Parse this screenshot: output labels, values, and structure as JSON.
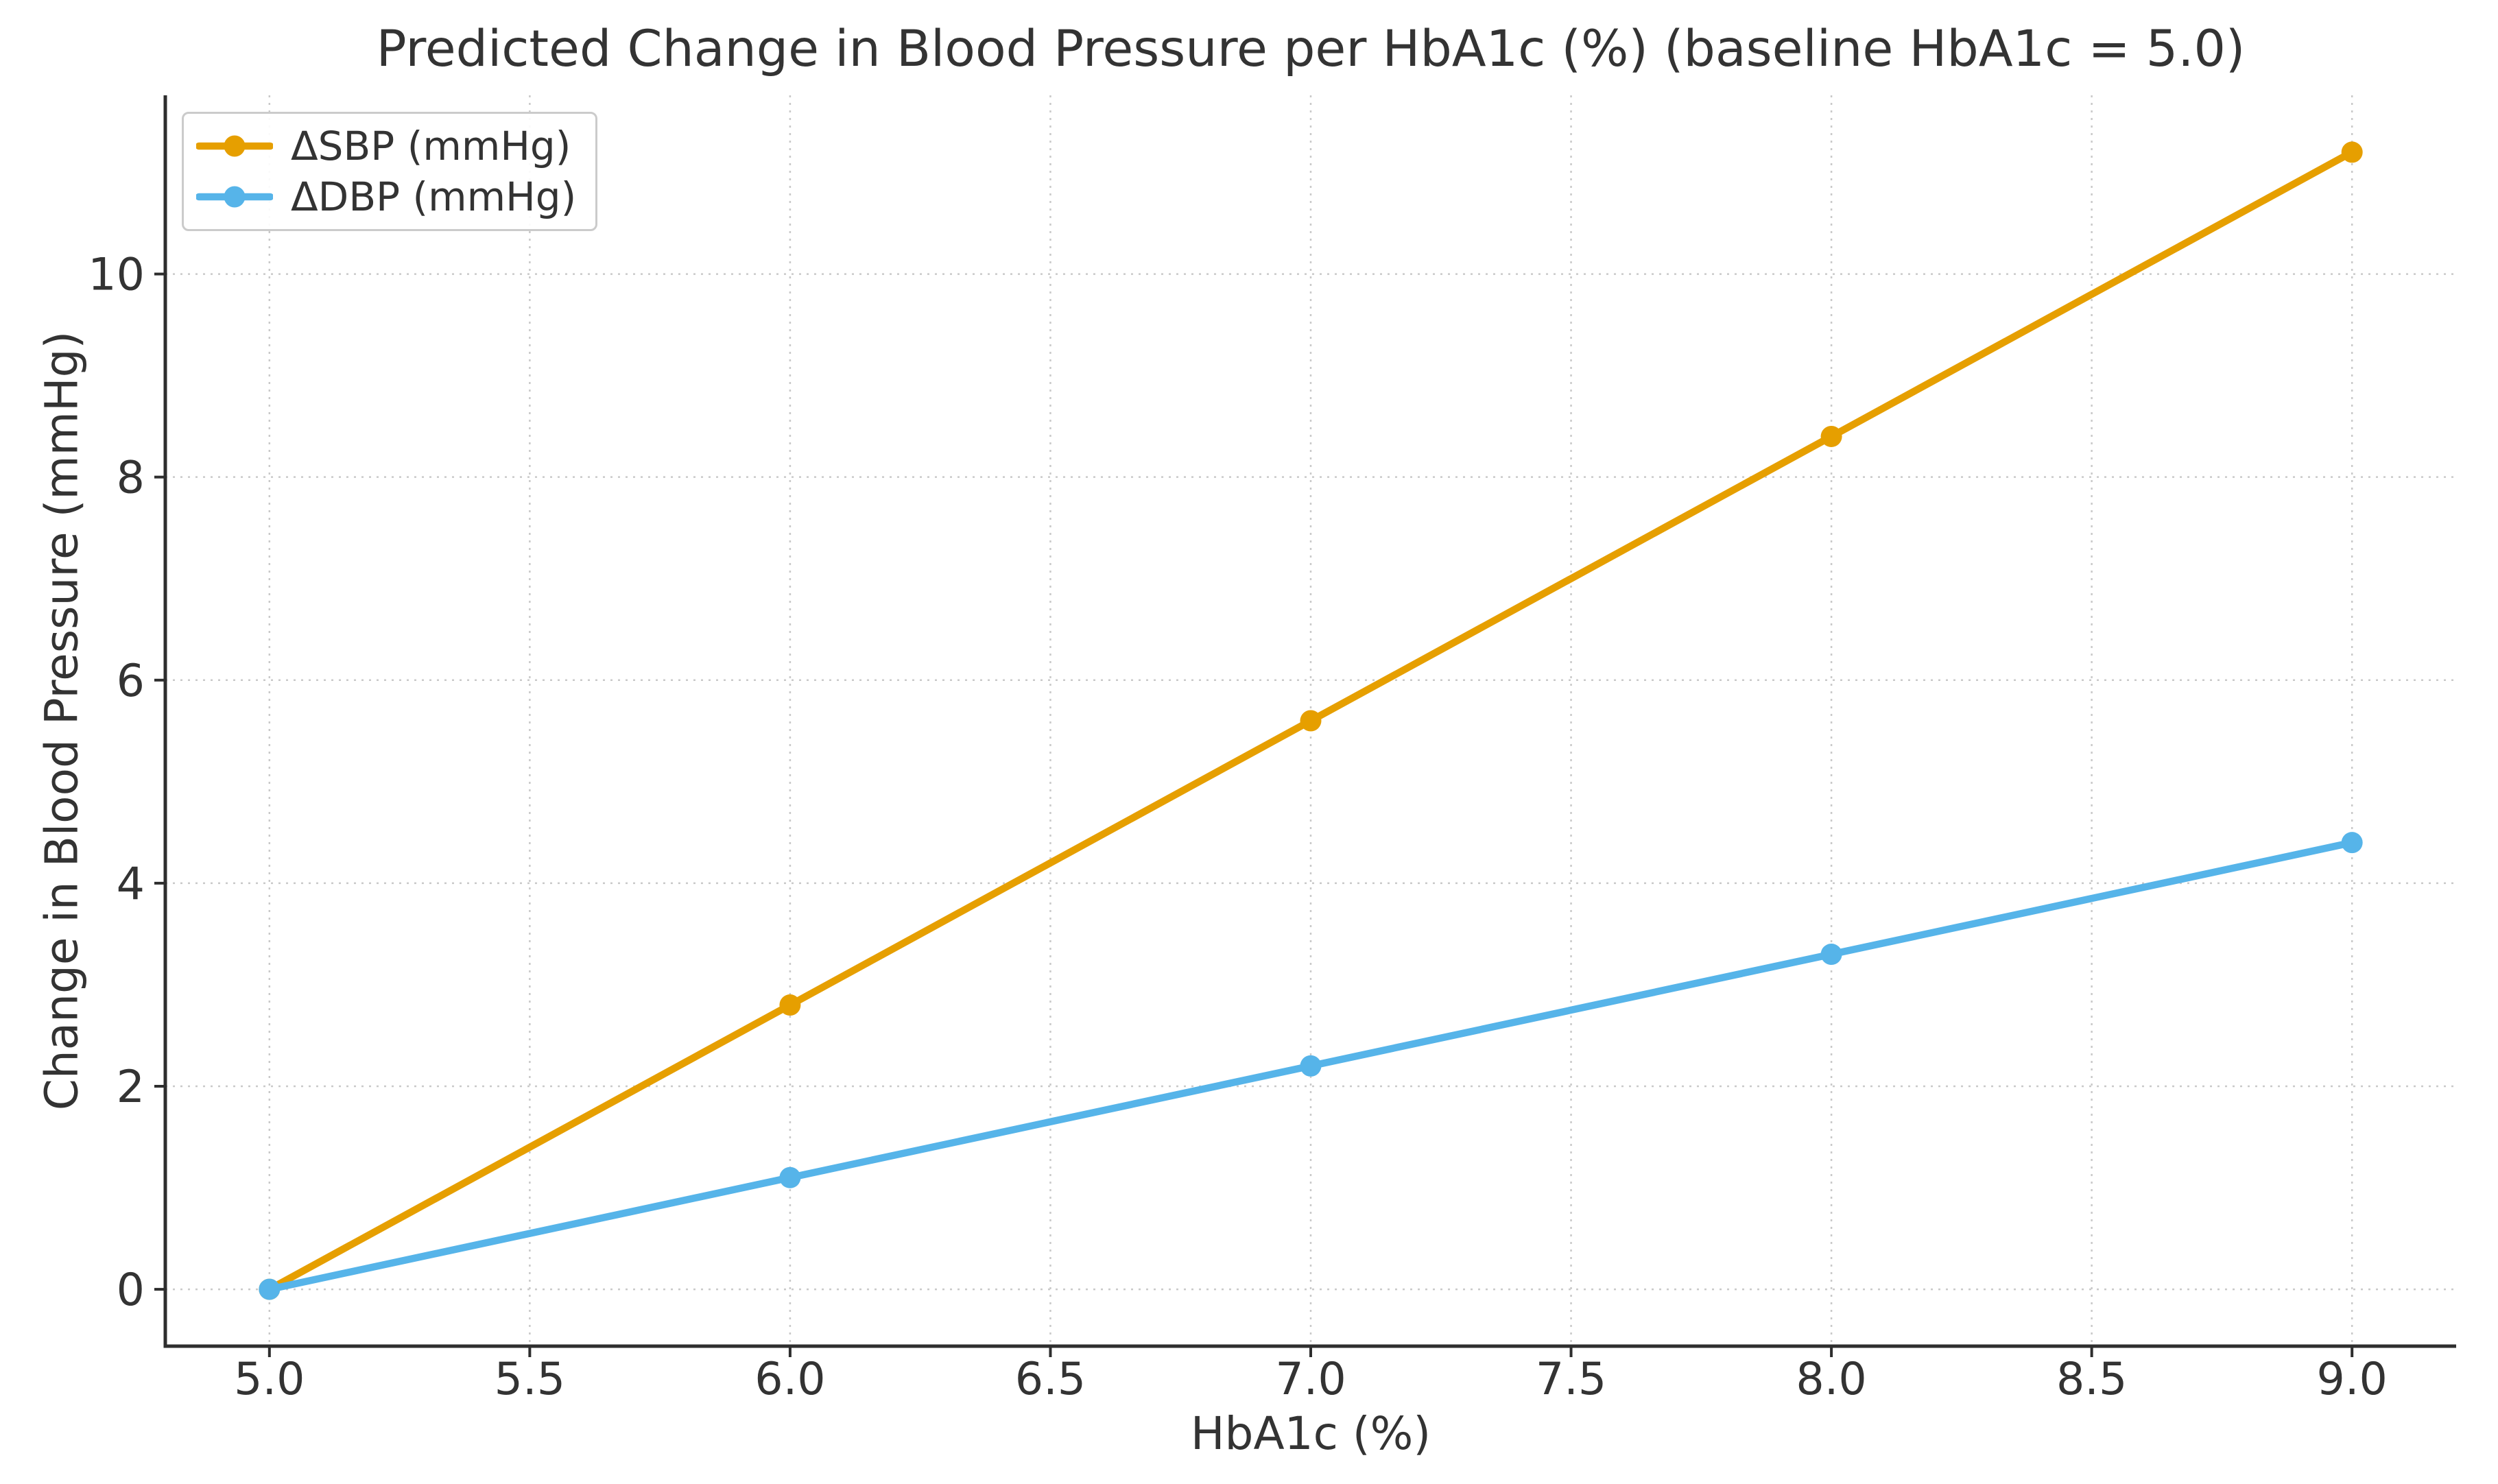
{
  "chart_data": {
    "type": "line",
    "title": "Predicted Change in Blood Pressure per HbA1c (%) (baseline HbA1c = 5.0)",
    "xlabel": "HbA1c (%)",
    "ylabel": "Change in Blood Pressure (mmHg)",
    "x": [
      5.0,
      6.0,
      7.0,
      8.0,
      9.0
    ],
    "series": [
      {
        "name": "ΔSBP (mmHg)",
        "color": "#E69F00",
        "values": [
          0.0,
          2.8,
          5.6,
          8.4,
          11.2
        ]
      },
      {
        "name": "ΔDBP (mmHg)",
        "color": "#56B4E9",
        "values": [
          0.0,
          1.1,
          2.2,
          3.3,
          4.4
        ]
      }
    ],
    "xticks": [
      5.0,
      5.5,
      6.0,
      6.5,
      7.0,
      7.5,
      8.0,
      8.5,
      9.0
    ],
    "xtick_labels": [
      "5.0",
      "5.5",
      "6.0",
      "6.5",
      "7.0",
      "7.5",
      "8.0",
      "8.5",
      "9.0"
    ],
    "yticks": [
      0,
      2,
      4,
      6,
      8,
      10
    ],
    "ytick_labels": [
      "0",
      "2",
      "4",
      "6",
      "8",
      "10"
    ],
    "xlim": [
      4.8,
      9.2
    ],
    "ylim": [
      -0.56,
      11.76
    ],
    "grid": true,
    "grid_style": "dotted",
    "legend_position": "upper left",
    "marker": "circle",
    "baseline_note": "baseline HbA1c = 5.0"
  },
  "style": {
    "background_color": "#ffffff",
    "text_color": "#333333",
    "spine_color": "#2e2e2e",
    "grid_color": "#c9c9c9",
    "legend_border_color": "#cbcbcb",
    "sbp_color": "#E69F00",
    "dbp_color": "#56B4E9"
  }
}
